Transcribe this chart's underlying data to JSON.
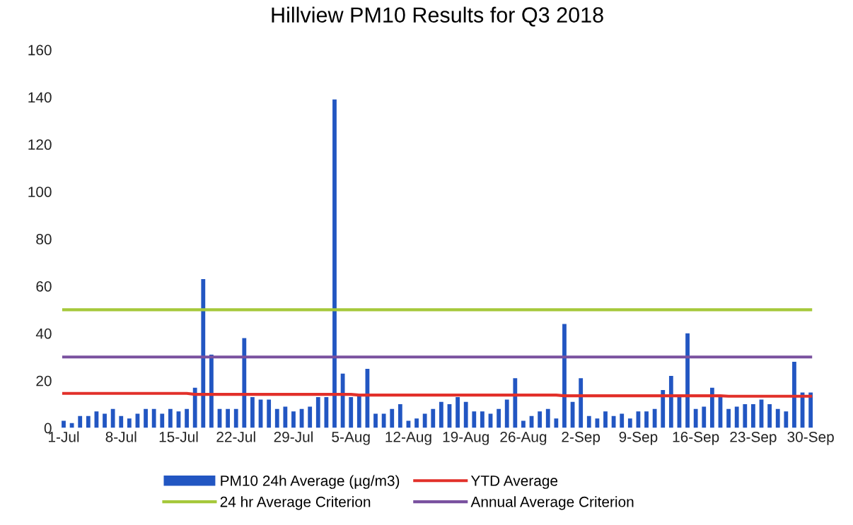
{
  "chart_data": {
    "type": "bar",
    "title": "Hillview PM10 Results for Q3 2018",
    "categories": [
      "1-Jul",
      null,
      null,
      null,
      null,
      null,
      null,
      "8-Jul",
      null,
      null,
      null,
      null,
      null,
      null,
      "15-Jul",
      null,
      null,
      null,
      null,
      null,
      null,
      "22-Jul",
      null,
      null,
      null,
      null,
      null,
      null,
      "29-Jul",
      null,
      null,
      null,
      null,
      null,
      null,
      "5-Aug",
      null,
      null,
      null,
      null,
      null,
      null,
      "12-Aug",
      null,
      null,
      null,
      null,
      null,
      null,
      "19-Aug",
      null,
      null,
      null,
      null,
      null,
      null,
      "26-Aug",
      null,
      null,
      null,
      null,
      null,
      null,
      "2-Sep",
      null,
      null,
      null,
      null,
      null,
      null,
      "9-Sep",
      null,
      null,
      null,
      null,
      null,
      null,
      "16-Sep",
      null,
      null,
      null,
      null,
      null,
      null,
      "23-Sep",
      null,
      null,
      null,
      null,
      null,
      null,
      "30-Sep"
    ],
    "series": [
      {
        "name": "PM10 24h Average (µg/m3)",
        "color": "#2256c2",
        "values": [
          3,
          2,
          5,
          5,
          7,
          6,
          8,
          5,
          4,
          6,
          8,
          8,
          6,
          8,
          7,
          8,
          17,
          63,
          31,
          8,
          8,
          8,
          38,
          13,
          12,
          12,
          8,
          9,
          7,
          8,
          9,
          13,
          13,
          139,
          23,
          13,
          14,
          25,
          6,
          6,
          8,
          10,
          3,
          4,
          6,
          8,
          11,
          10,
          13,
          11,
          7,
          7,
          6,
          8,
          12,
          21,
          3,
          5,
          7,
          8,
          4,
          44,
          11,
          21,
          5,
          4,
          7,
          5,
          6,
          4,
          7,
          7,
          8,
          16,
          22,
          13,
          40,
          8,
          9,
          17,
          13,
          8,
          9,
          10,
          10,
          12,
          10,
          8,
          7,
          28,
          15,
          15
        ]
      },
      {
        "name": "YTD Average",
        "type": "line",
        "color": "#e2302a",
        "values": [
          14.6,
          14.6,
          14.6,
          14.6,
          14.6,
          14.6,
          14.6,
          14.6,
          14.6,
          14.6,
          14.6,
          14.6,
          14.6,
          14.6,
          14.6,
          14.6,
          14.2,
          14.2,
          14.2,
          14.2,
          14.2,
          14.2,
          14.2,
          14.2,
          14.2,
          14.2,
          14.2,
          14.2,
          14.2,
          14.2,
          14.2,
          14.2,
          14.2,
          14.2,
          14.2,
          14.2,
          13.9,
          13.9,
          13.9,
          13.9,
          13.9,
          13.9,
          13.9,
          13.9,
          13.9,
          13.9,
          13.9,
          13.9,
          13.9,
          13.9,
          13.9,
          13.9,
          13.9,
          13.9,
          13.9,
          13.9,
          13.9,
          13.9,
          13.9,
          13.9,
          13.9,
          13.6,
          13.6,
          13.6,
          13.6,
          13.6,
          13.6,
          13.6,
          13.6,
          13.6,
          13.6,
          13.6,
          13.6,
          13.6,
          13.6,
          13.6,
          13.6,
          13.6,
          13.6,
          13.6,
          13.6,
          13.4,
          13.4,
          13.4,
          13.4,
          13.4,
          13.4,
          13.4,
          13.4,
          13.4,
          13.4,
          13.4
        ]
      },
      {
        "name": "24 hr Average Criterion",
        "type": "line",
        "color": "#a5c83a",
        "values": [
          50,
          50,
          50,
          50,
          50,
          50,
          50,
          50,
          50,
          50,
          50,
          50,
          50,
          50,
          50,
          50,
          50,
          50,
          50,
          50,
          50,
          50,
          50,
          50,
          50,
          50,
          50,
          50,
          50,
          50,
          50,
          50,
          50,
          50,
          50,
          50,
          50,
          50,
          50,
          50,
          50,
          50,
          50,
          50,
          50,
          50,
          50,
          50,
          50,
          50,
          50,
          50,
          50,
          50,
          50,
          50,
          50,
          50,
          50,
          50,
          50,
          50,
          50,
          50,
          50,
          50,
          50,
          50,
          50,
          50,
          50,
          50,
          50,
          50,
          50,
          50,
          50,
          50,
          50,
          50,
          50,
          50,
          50,
          50,
          50,
          50,
          50,
          50,
          50,
          50,
          50,
          50
        ]
      },
      {
        "name": "Annual Average Criterion",
        "type": "line",
        "color": "#7a519f",
        "values": [
          30,
          30,
          30,
          30,
          30,
          30,
          30,
          30,
          30,
          30,
          30,
          30,
          30,
          30,
          30,
          30,
          30,
          30,
          30,
          30,
          30,
          30,
          30,
          30,
          30,
          30,
          30,
          30,
          30,
          30,
          30,
          30,
          30,
          30,
          30,
          30,
          30,
          30,
          30,
          30,
          30,
          30,
          30,
          30,
          30,
          30,
          30,
          30,
          30,
          30,
          30,
          30,
          30,
          30,
          30,
          30,
          30,
          30,
          30,
          30,
          30,
          30,
          30,
          30,
          30,
          30,
          30,
          30,
          30,
          30,
          30,
          30,
          30,
          30,
          30,
          30,
          30,
          30,
          30,
          30,
          30,
          30,
          30,
          30,
          30,
          30,
          30,
          30,
          30,
          30,
          30,
          30
        ]
      }
    ],
    "ylim": [
      0,
      160
    ],
    "yticks": [
      0,
      20,
      40,
      60,
      80,
      100,
      120,
      140,
      160
    ],
    "grid": false,
    "legend": "bottom"
  }
}
